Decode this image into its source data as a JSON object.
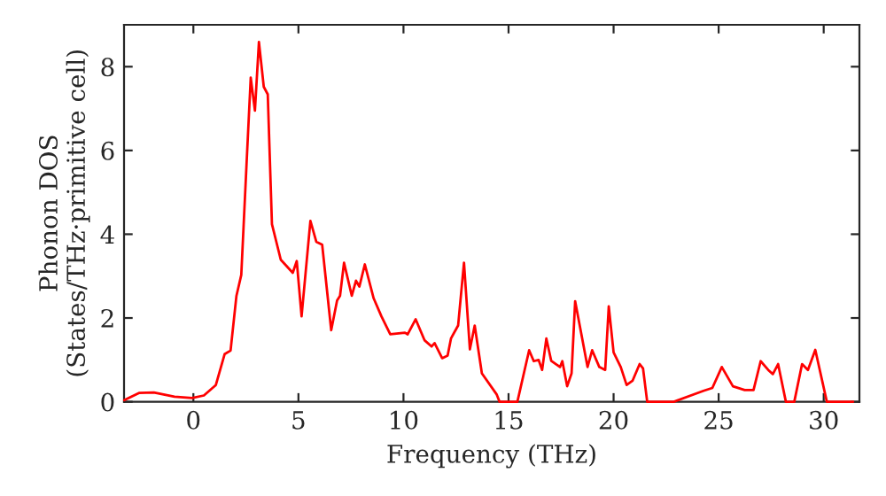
{
  "chart_data": {
    "type": "line",
    "xlabel": "Frequency (THz)",
    "ylabel": "Phonon DOS\n(States/THz·primitive cell)",
    "xlim": [
      -3.3,
      31.7
    ],
    "ylim": [
      0,
      9
    ],
    "xticks": [
      0,
      5,
      10,
      15,
      20,
      25,
      30
    ],
    "yticks": [
      0,
      2,
      4,
      6,
      8
    ],
    "grid": false,
    "legend": false,
    "series": [
      {
        "color": "#ff0000",
        "x": [
          -3.29,
          -2.59,
          -1.88,
          -0.9,
          -0.06,
          0.5,
          1.07,
          1.49,
          1.77,
          2.05,
          2.28,
          2.53,
          2.73,
          2.93,
          3.12,
          3.35,
          3.54,
          3.74,
          4.16,
          4.73,
          4.92,
          5.15,
          5.57,
          5.85,
          6.13,
          6.56,
          6.84,
          6.98,
          7.17,
          7.54,
          7.74,
          7.9,
          8.16,
          8.58,
          8.95,
          9.37,
          10.07,
          10.2,
          10.58,
          11.0,
          11.34,
          11.48,
          11.84,
          12.1,
          12.26,
          12.6,
          12.88,
          13.16,
          13.39,
          13.73,
          14.43,
          14.57,
          15.42,
          15.98,
          16.2,
          16.43,
          16.6,
          16.8,
          17.03,
          17.45,
          17.56,
          17.79,
          18.0,
          18.17,
          18.76,
          18.98,
          19.32,
          19.6,
          19.77,
          20.0,
          20.34,
          20.62,
          20.9,
          21.24,
          21.4,
          21.6,
          22.87,
          24.28,
          24.7,
          25.15,
          25.68,
          26.24,
          26.66,
          27.0,
          27.36,
          27.58,
          27.83,
          28.2,
          28.6,
          28.97,
          29.25,
          29.6,
          30.15,
          31.4
        ],
        "values": [
          0.04,
          0.21,
          0.22,
          0.12,
          0.09,
          0.15,
          0.4,
          1.14,
          1.22,
          2.53,
          3.03,
          5.67,
          7.74,
          6.95,
          8.59,
          7.52,
          7.34,
          4.24,
          3.39,
          3.08,
          3.36,
          2.04,
          4.32,
          3.82,
          3.75,
          1.71,
          2.42,
          2.53,
          3.32,
          2.53,
          2.89,
          2.75,
          3.28,
          2.47,
          2.04,
          1.61,
          1.65,
          1.61,
          1.97,
          1.47,
          1.32,
          1.4,
          1.04,
          1.1,
          1.51,
          1.82,
          3.32,
          1.25,
          1.82,
          0.68,
          0.18,
          0,
          0,
          1.23,
          0.97,
          1.0,
          0.76,
          1.51,
          0.98,
          0.83,
          0.97,
          0.37,
          0.68,
          2.4,
          0.83,
          1.23,
          0.83,
          0.76,
          2.28,
          1.18,
          0.83,
          0.4,
          0.5,
          0.9,
          0.8,
          0,
          0,
          0.26,
          0.33,
          0.83,
          0.37,
          0.28,
          0.28,
          0.97,
          0.76,
          0.66,
          0.9,
          0,
          0,
          0.9,
          0.76,
          1.24,
          0,
          0
        ]
      }
    ]
  }
}
